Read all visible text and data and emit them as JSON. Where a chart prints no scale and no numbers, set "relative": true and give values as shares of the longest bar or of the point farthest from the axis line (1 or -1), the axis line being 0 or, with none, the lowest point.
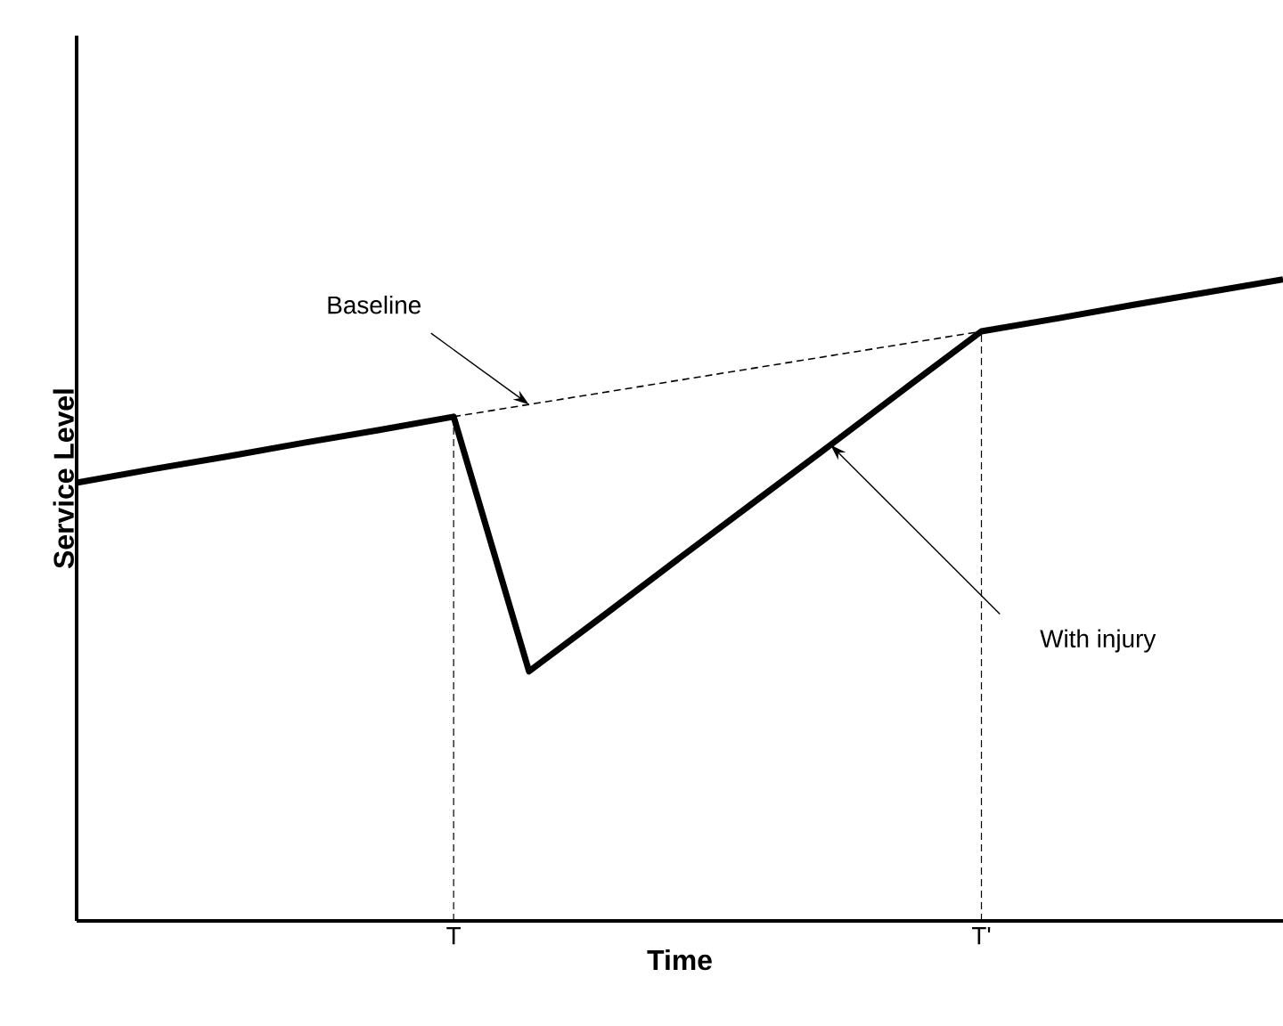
{
  "chart_data": {
    "type": "line",
    "relative": true,
    "xlabel": "Time",
    "ylabel": "Service Level",
    "categories": [
      null,
      null,
      null,
      null,
      null,
      "T",
      null,
      null,
      null,
      null,
      null,
      null,
      "T'",
      null,
      null,
      null,
      null
    ],
    "tick_labels": "x",
    "grid": false,
    "marker": "none",
    "series": [
      {
        "color": "#000000",
        "line_style": "solid",
        "values": [
          0.683,
          0.704,
          0.724,
          0.745,
          0.765,
          0.786,
          0.389,
          0.477,
          0.566,
          0.654,
          0.742,
          0.831,
          0.919,
          0.939,
          0.96,
          0.98,
          1
        ]
      },
      {
        "color": "#000000",
        "line_style": "dashed",
        "values": [
          null,
          null,
          null,
          null,
          null,
          0.786,
          0.805,
          0.824,
          0.843,
          0.862,
          0.881,
          0.9,
          0.919,
          null,
          null,
          null,
          null
        ]
      }
    ],
    "ref_lines": [
      {
        "axis": "x",
        "value": "T",
        "line_style": "dashed",
        "color": "#000000"
      },
      {
        "axis": "x",
        "value": "T'",
        "line_style": "dashed",
        "color": "#000000"
      }
    ],
    "annotations": [
      "Baseline",
      "With injury"
    ]
  }
}
